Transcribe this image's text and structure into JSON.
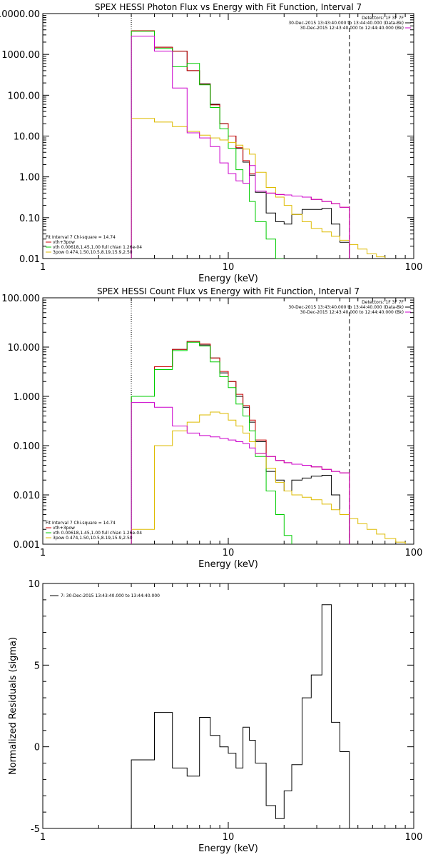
{
  "chart_data": [
    {
      "type": "line",
      "title": "SPEX HESSI Photon Flux vs Energy with Fit Function, Interval 7",
      "xlabel": "Energy (keV)",
      "ylabel": "",
      "xscale": "log",
      "yscale": "log",
      "xlim": [
        1,
        100
      ],
      "ylim": [
        0.01,
        10000
      ],
      "xticks": [
        1,
        10,
        100
      ],
      "xtick_labels": [
        "1",
        "10",
        "100"
      ],
      "yticks": [
        10000,
        1000,
        100,
        10,
        1,
        0.1,
        0.01
      ],
      "ytick_labels": [
        "10000.00",
        "1000.00",
        "100.00",
        "10.00",
        "1.00",
        "0.10",
        "0.01"
      ],
      "vlines": [
        {
          "x": 3,
          "style": "dotted"
        },
        {
          "x": 45,
          "style": "dashed"
        }
      ],
      "legend_top": [
        "Detectors: 1F 3F 7F",
        "30-Dec-2015 13:43:40.000 to 13:44:40.000 (Data-Bk)",
        "30-Dec-2015 12:43:40.000 to 12:44:40.000 (Bk)"
      ],
      "legend_bottom": [
        "Fit Interval 7   Chi-square = 14.74",
        "vth+3pow",
        "vth 0.00618,1.45,1.00   full chian 1.26e-04",
        "3pow 0.474,1.50,10.5,8.19,15.9,2.50"
      ],
      "edges": [
        3,
        4,
        5,
        6,
        7,
        8,
        9,
        10,
        11,
        12,
        13,
        14,
        16,
        18,
        20,
        22,
        25,
        28,
        32,
        36,
        40,
        45,
        50,
        56,
        63,
        70
      ],
      "series": [
        {
          "name": "30-Dec-2015 13:43:40.000 to 13:44:40.000 (Data-Bk)",
          "color": "#000000",
          "values": [
            3800,
            1500,
            1200,
            400,
            190,
            60,
            20,
            10,
            5,
            2.3,
            1.1,
            0.42,
            0.13,
            0.08,
            0.07,
            0.12,
            0.16,
            0.16,
            0.17,
            0.07,
            0.025
          ]
        },
        {
          "name": "vth+3pow",
          "color": "#cc0000",
          "values": [
            3800,
            1500,
            1200,
            400,
            185,
            58,
            20,
            10,
            5.2,
            2.5,
            1.2,
            0.45,
            0.4,
            0.37,
            0.36,
            0.34,
            0.32,
            0.28,
            0.25,
            0.22,
            0.18
          ]
        },
        {
          "name": "vth",
          "color": "#00cc00",
          "values": [
            3700,
            1400,
            500,
            600,
            180,
            50,
            15,
            5,
            1.5,
            0.7,
            0.25,
            0.08,
            0.03,
            0.01
          ]
        },
        {
          "name": "3pow",
          "color": "#ddbb00",
          "values": [
            27,
            22,
            17,
            13,
            10.5,
            9,
            8,
            7,
            6,
            4.8,
            3.6,
            1.3,
            0.55,
            0.32,
            0.2,
            0.12,
            0.08,
            0.055,
            0.045,
            0.035,
            0.028,
            0.022,
            0.017,
            0.013,
            0.011
          ]
        },
        {
          "name": "30-Dec-2015 12:43:40.000 to 12:44:40.000 (Bk)",
          "color": "#cc00cc",
          "values": [
            2800,
            1200,
            150,
            12,
            9,
            5.5,
            2.2,
            1.2,
            0.8,
            0.7,
            1.9,
            0.45,
            0.4,
            0.37,
            0.36,
            0.34,
            0.32,
            0.28,
            0.25,
            0.22,
            0.18
          ]
        }
      ]
    },
    {
      "type": "line",
      "title": "SPEX HESSI Count Flux vs Energy with Fit Function, Interval 7",
      "xlabel": "Energy (keV)",
      "ylabel": "",
      "xscale": "log",
      "yscale": "log",
      "xlim": [
        1,
        100
      ],
      "ylim": [
        0.001,
        100
      ],
      "xticks": [
        1,
        10,
        100
      ],
      "xtick_labels": [
        "1",
        "10",
        "100"
      ],
      "yticks": [
        100,
        10,
        1,
        0.1,
        0.01,
        0.001
      ],
      "ytick_labels": [
        "100.000",
        "10.000",
        "1.000",
        "0.100",
        "0.010",
        "0.001"
      ],
      "vlines": [
        {
          "x": 3,
          "style": "dotted"
        },
        {
          "x": 45,
          "style": "dashed"
        }
      ],
      "legend_top": [
        "Detectors: 1F 3F 7F",
        "30-Dec-2015 13:43:40.000 to 13:44:40.000 (Data-Bk)",
        "30-Dec-2015 12:43:40.000 to 12:44:40.000 (Bk)"
      ],
      "legend_bottom": [
        "Fit Interval 7   Chi-square = 14.74",
        "vth+3pow",
        "vth 0.00618,1.45,1.00   full chian 1.26e-04",
        "3pow 0.474,1.50,10.5,8.19,15.9,2.50"
      ],
      "edges": [
        3,
        4,
        5,
        6,
        7,
        8,
        9,
        10,
        11,
        12,
        13,
        14,
        16,
        18,
        20,
        22,
        25,
        28,
        32,
        36,
        40,
        45,
        50,
        56,
        63,
        70,
        80,
        90
      ],
      "series": [
        {
          "name": "30-Dec-2015 13:43:40.000 to 13:44:40.000 (Data-Bk)",
          "color": "#000000",
          "values": [
            1.0,
            4.0,
            9.0,
            13,
            11,
            6,
            3,
            2,
            1,
            0.6,
            0.3,
            0.12,
            0.03,
            0.02,
            0.012,
            0.02,
            0.022,
            0.024,
            0.025,
            0.01,
            0.004
          ]
        },
        {
          "name": "vth+3pow",
          "color": "#cc0000",
          "values": [
            1.0,
            4.0,
            9.0,
            13,
            11.5,
            6,
            3.2,
            2,
            1.1,
            0.65,
            0.33,
            0.13,
            0.06,
            0.05,
            0.045,
            0.042,
            0.04,
            0.037,
            0.033,
            0.03,
            0.028
          ]
        },
        {
          "name": "vth",
          "color": "#00cc00",
          "values": [
            1.0,
            3.5,
            8.5,
            12.5,
            10.5,
            5,
            2.5,
            1.5,
            0.7,
            0.4,
            0.2,
            0.06,
            0.012,
            0.004,
            0.0015
          ]
        },
        {
          "name": "3pow",
          "color": "#ddbb00",
          "values": [
            0.002,
            0.1,
            0.2,
            0.3,
            0.42,
            0.48,
            0.45,
            0.33,
            0.25,
            0.18,
            0.12,
            0.07,
            0.035,
            0.018,
            0.012,
            0.01,
            0.009,
            0.008,
            0.0065,
            0.005,
            0.004,
            0.0033,
            0.0026,
            0.002,
            0.0016,
            0.0013,
            0.0011
          ]
        },
        {
          "name": "30-Dec-2015 12:43:40.000 to 12:44:40.000 (Bk)",
          "color": "#cc00cc",
          "values": [
            0.75,
            0.6,
            0.25,
            0.18,
            0.16,
            0.15,
            0.14,
            0.13,
            0.12,
            0.11,
            0.09,
            0.07,
            0.06,
            0.05,
            0.045,
            0.042,
            0.04,
            0.037,
            0.033,
            0.03,
            0.028
          ]
        }
      ]
    },
    {
      "type": "line",
      "title": "",
      "xlabel": "Energy (keV)",
      "ylabel": "Normalized Residuals (sigma)",
      "xscale": "log",
      "yscale": "linear",
      "xlim": [
        1,
        100
      ],
      "ylim": [
        -5,
        10
      ],
      "xticks": [
        1,
        10,
        100
      ],
      "xtick_labels": [
        "1",
        "10",
        "100"
      ],
      "yticks": [
        10,
        5,
        0,
        -5
      ],
      "ytick_labels": [
        "10",
        "5",
        "0",
        "-5"
      ],
      "legend_top": [
        "7: 30-Dec-2015 13:43:40.000 to 13:44:40.000"
      ],
      "edges": [
        3,
        4,
        5,
        6,
        7,
        8,
        9,
        10,
        11,
        12,
        13,
        14,
        16,
        18,
        20,
        22,
        25,
        28,
        32,
        36,
        40,
        45
      ],
      "series": [
        {
          "name": "7: 30-Dec-2015 13:43:40.000 to 13:44:40.000",
          "color": "#000000",
          "values": [
            -0.8,
            2.1,
            -1.3,
            -1.8,
            1.8,
            0.7,
            0.0,
            -0.4,
            -1.3,
            1.2,
            0.4,
            -1.0,
            -3.6,
            -4.4,
            -2.7,
            -1.1,
            3.0,
            4.4,
            8.7,
            1.5,
            -0.3
          ]
        }
      ]
    }
  ]
}
